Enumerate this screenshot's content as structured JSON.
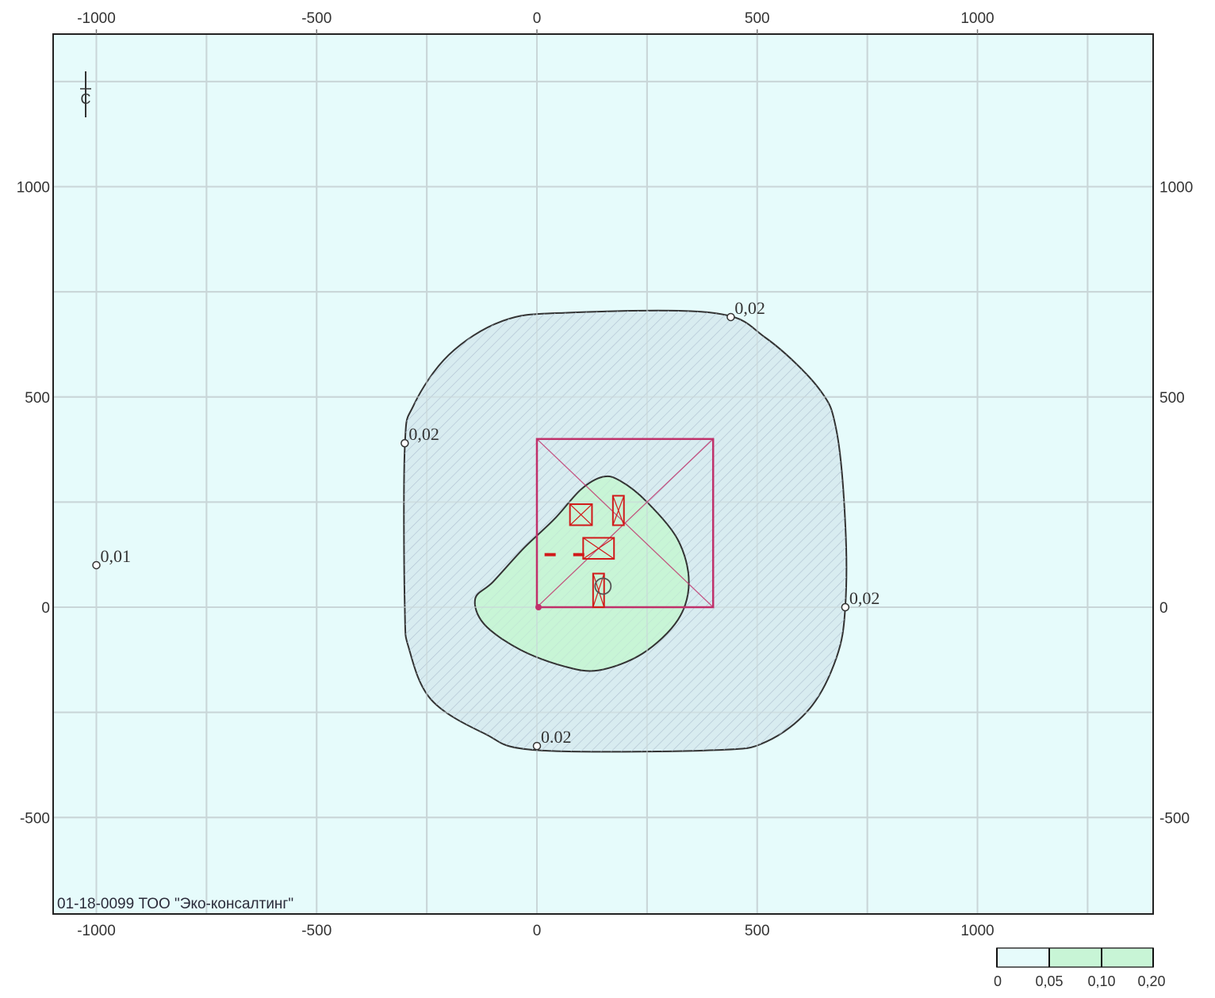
{
  "map": {
    "x_ticks_top": [
      "-1000",
      "-500",
      "0",
      "500",
      "1000"
    ],
    "x_ticks_bottom": [
      "-1000",
      "-500",
      "0",
      "500",
      "1000"
    ],
    "y_ticks_left": [
      "1000",
      "500",
      "0",
      "-500"
    ],
    "y_ticks_right": [
      "1000",
      "500",
      "0",
      "-500"
    ],
    "north_arrow_letter": "С",
    "isoline_labels": [
      {
        "text": "0,02",
        "x": 440,
        "y": 690
      },
      {
        "text": "0,02",
        "x": -300,
        "y": 390
      },
      {
        "text": "0,02",
        "x": 700,
        "y": 0
      },
      {
        "text": "0.02",
        "x": 0,
        "y": -330
      },
      {
        "text": "0,01",
        "x": -1000,
        "y": 100
      }
    ],
    "caption": "01-18-0099 ТОО \"Эко-консалтинг\"",
    "legend": {
      "labels": [
        "0",
        "0,05",
        "0,10",
        "0,20"
      ],
      "colors": [
        "#e6fbfb",
        "#c8f5d6",
        "#c8f5d6"
      ]
    },
    "colors": {
      "background": "#e6fbfb",
      "grid": "#c9d6d8",
      "zone_outer": "#d8ecf0",
      "zone_inner": "#c8f5d6",
      "isoline": "#333333",
      "site_boundary": "#c0306a",
      "sources": "#d11a1a"
    }
  }
}
